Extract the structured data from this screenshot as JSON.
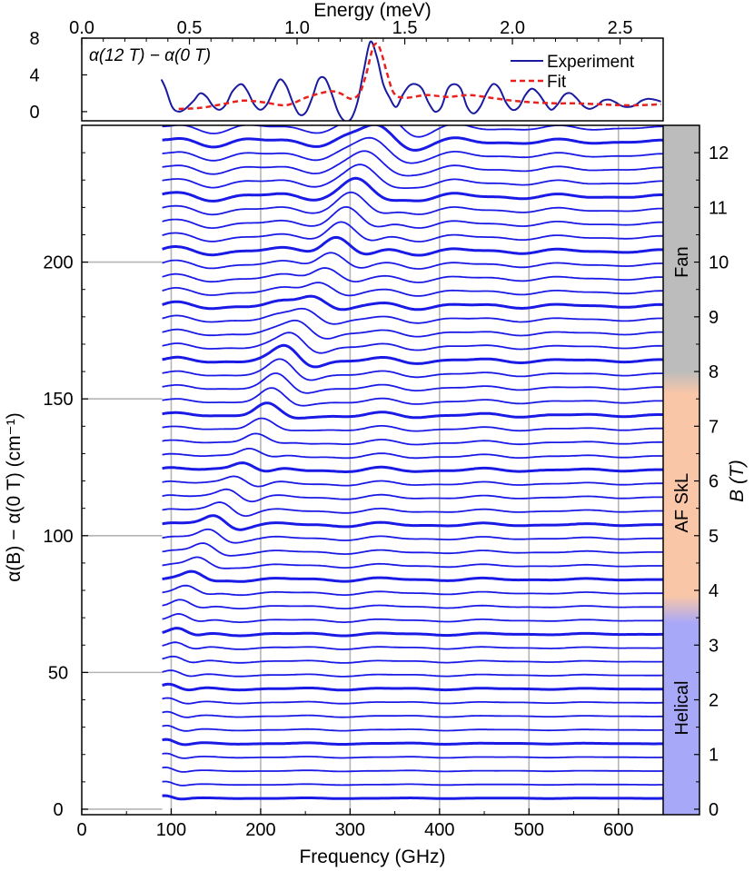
{
  "chart_data": [
    {
      "type": "line",
      "panel": "top",
      "annotation": "α(12 T) − α(0 T)",
      "xlabel": "Energy (meV)",
      "xlim": [
        0.0,
        2.7
      ],
      "xticks": [
        "0.0",
        "0.5",
        "1.0",
        "1.5",
        "2.0",
        "2.5"
      ],
      "ylim": [
        -1,
        8
      ],
      "yticks": [
        "0",
        "4",
        "8"
      ],
      "legend_position": "top-right",
      "series": [
        {
          "name": "Experiment",
          "color": "#1a1aa0",
          "style": "solid",
          "x": [
            0.37,
            0.39,
            0.42,
            0.45,
            0.48,
            0.52,
            0.55,
            0.58,
            0.61,
            0.64,
            0.67,
            0.7,
            0.74,
            0.77,
            0.8,
            0.83,
            0.86,
            0.89,
            0.92,
            0.95,
            0.98,
            1.01,
            1.04,
            1.07,
            1.1,
            1.13,
            1.16,
            1.19,
            1.22,
            1.25,
            1.28,
            1.31,
            1.34,
            1.37,
            1.4,
            1.43,
            1.46,
            1.49,
            1.52,
            1.55,
            1.58,
            1.61,
            1.64,
            1.67,
            1.7,
            1.73,
            1.76,
            1.79,
            1.82,
            1.85,
            1.88,
            1.91,
            1.94,
            1.97,
            2.0,
            2.03,
            2.06,
            2.09,
            2.12,
            2.15,
            2.18,
            2.21,
            2.24,
            2.27,
            2.3,
            2.33,
            2.36,
            2.39,
            2.42,
            2.45,
            2.48,
            2.51,
            2.54,
            2.57,
            2.6,
            2.63,
            2.66,
            2.69
          ],
          "y": [
            3.5,
            2.5,
            0.5,
            0.0,
            0.3,
            1.2,
            2.0,
            1.6,
            0.6,
            0.2,
            0.8,
            2.2,
            3.0,
            2.2,
            0.8,
            0.2,
            0.8,
            2.3,
            3.5,
            2.8,
            1.0,
            -0.3,
            -0.1,
            1.5,
            3.5,
            3.6,
            2.0,
            0.0,
            -1.0,
            -0.8,
            1.0,
            4.5,
            7.6,
            6.0,
            3.0,
            1.5,
            0.5,
            1.8,
            2.8,
            3.0,
            2.5,
            1.0,
            0.0,
            0.5,
            2.5,
            3.0,
            2.5,
            0.5,
            -0.2,
            0.5,
            2.0,
            3.0,
            2.5,
            1.0,
            0.2,
            0.5,
            1.8,
            2.5,
            2.0,
            1.0,
            0.2,
            0.8,
            1.8,
            2.0,
            1.4,
            0.6,
            0.3,
            0.6,
            1.2,
            1.3,
            1.0,
            0.6,
            0.5,
            0.7,
            1.2,
            1.4,
            1.3,
            1.1
          ]
        },
        {
          "name": "Fit",
          "color": "#e8201e",
          "style": "dashed",
          "x": [
            0.45,
            0.55,
            0.65,
            0.75,
            0.85,
            0.95,
            1.05,
            1.15,
            1.2,
            1.25,
            1.29,
            1.32,
            1.35,
            1.37,
            1.39,
            1.42,
            1.45,
            1.5,
            1.6,
            1.7,
            1.8,
            1.9,
            2.0,
            2.1,
            2.2,
            2.3,
            2.4,
            2.5,
            2.6,
            2.69
          ],
          "y": [
            0.3,
            0.4,
            0.8,
            1.2,
            1.0,
            0.7,
            1.6,
            2.2,
            2.0,
            1.4,
            2.0,
            4.0,
            6.8,
            7.4,
            6.5,
            4.0,
            2.0,
            1.5,
            1.8,
            1.6,
            1.8,
            1.5,
            1.2,
            1.0,
            0.9,
            0.9,
            0.8,
            0.7,
            0.7,
            0.8
          ]
        }
      ]
    },
    {
      "type": "line",
      "panel": "main",
      "description_of_series": "stacked absorption spectra α(B) − α(0 T), one per field step, offset 5 cm⁻¹ per step",
      "xlabel": "Frequency (GHz)",
      "xlim": [
        0,
        650
      ],
      "xticks": [
        "0",
        "100",
        "200",
        "300",
        "400",
        "500",
        "600"
      ],
      "ylabel": "α(B) − α(0 T) (cm⁻¹)",
      "ylim": [
        -2,
        250
      ],
      "yticks": [
        "0",
        "50",
        "100",
        "150",
        "200"
      ],
      "grid": "vertical every 100 GHz, horizontal at 0, 50, 100, 150, 200",
      "fields_T": {
        "start": 0.0,
        "stop": 12.25,
        "step": 0.25,
        "bold_every_T": 1
      },
      "offset_per_T": 20,
      "frequency_range_GHz": [
        90,
        650
      ],
      "mode_center_GHz": {
        "fields_T": [
          0,
          2,
          3.5,
          5,
          6,
          7,
          8,
          9,
          10,
          11,
          12.25
        ],
        "values": [
          92,
          98,
          110,
          148,
          180,
          205,
          228,
          258,
          282,
          308,
          335
        ]
      },
      "color": "#1a1ae6",
      "right_axis": {
        "label": "B (T)",
        "lim": [
          -0.1,
          12.5
        ],
        "ticks": [
          "0",
          "1",
          "2",
          "3",
          "4",
          "5",
          "6",
          "7",
          "8",
          "9",
          "10",
          "11",
          "12"
        ]
      },
      "phase_bar": [
        {
          "name": "Helical",
          "from_T": -0.1,
          "to_T": 3.4,
          "color": "#a8a8f8"
        },
        {
          "name": "AF SkL",
          "from_T": 3.9,
          "to_T": 7.6,
          "color": "#f9c6a8"
        },
        {
          "name": "Fan",
          "from_T": 8.0,
          "to_T": 12.5,
          "color": "#bcbcbc"
        }
      ]
    }
  ]
}
